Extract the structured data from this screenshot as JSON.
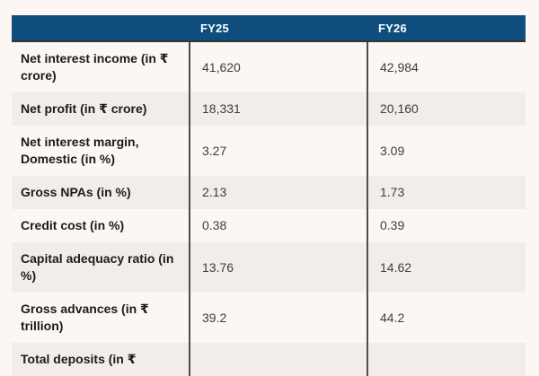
{
  "chart_data": {
    "type": "table",
    "title": "",
    "columns": [
      "",
      "FY25",
      "FY26"
    ],
    "rows": [
      {
        "label": "Net interest income (in ₹\ncrore)",
        "values": [
          "41,620",
          "42,984"
        ]
      },
      {
        "label": "Net profit (in ₹ crore)",
        "values": [
          "18,331",
          "20,160"
        ]
      },
      {
        "label": "Net interest margin,\nDomestic (in %)",
        "values": [
          "3.27",
          "3.09"
        ]
      },
      {
        "label": "Gross NPAs (in %)",
        "values": [
          "2.13",
          "1.73"
        ]
      },
      {
        "label": "Credit cost (in %)",
        "values": [
          "0.38",
          "0.39"
        ]
      },
      {
        "label": "Capital adequacy ratio (in\n%)",
        "values": [
          "13.76",
          "14.62"
        ]
      },
      {
        "label": "Gross advances (in ₹\ntrillion)",
        "values": [
          "39.2",
          "44.2"
        ]
      },
      {
        "label": "Total deposits (in ₹",
        "values": [
          "",
          ""
        ]
      }
    ],
    "colors": {
      "page_bg": "#fcf6f4",
      "header_bg": "#0f4d7c",
      "header_text": "#ffffff",
      "row_alt_bg": "#f2edeb",
      "divider": "#4e4e4e",
      "header_border": "#373737",
      "label_text": "#1d1b19",
      "value_text": "#3e3e3e"
    }
  }
}
